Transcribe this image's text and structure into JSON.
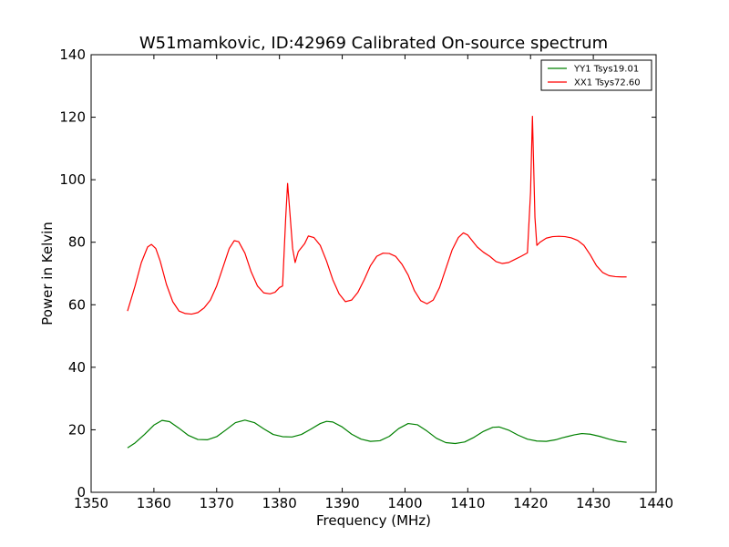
{
  "chart_data": {
    "type": "line",
    "title": "W51mamkovic, ID:42969 Calibrated On-source spectrum",
    "xlabel": "Frequency (MHz)",
    "ylabel": "Power in Kelvin",
    "xlim": [
      1350,
      1440
    ],
    "ylim": [
      0,
      140
    ],
    "xticks": [
      1350,
      1360,
      1370,
      1380,
      1390,
      1400,
      1410,
      1420,
      1430,
      1440
    ],
    "yticks": [
      0,
      20,
      40,
      60,
      80,
      100,
      120,
      140
    ],
    "grid": false,
    "legend_position": "top-right",
    "series": [
      {
        "name": "YY1 Tsys19.01",
        "color": "#008000",
        "x": [
          1355.8,
          1357,
          1358.5,
          1360,
          1361.3,
          1362.5,
          1364,
          1365.5,
          1367,
          1368.5,
          1370,
          1371.5,
          1373,
          1374.5,
          1376,
          1377.5,
          1379,
          1380.5,
          1382,
          1383.5,
          1385,
          1386.5,
          1387.5,
          1388.5,
          1390,
          1391.5,
          1393,
          1394.5,
          1396,
          1397.5,
          1399,
          1400.5,
          1402,
          1403.5,
          1405,
          1406.5,
          1408,
          1409.5,
          1411,
          1412.5,
          1414,
          1415,
          1416.5,
          1418,
          1419.5,
          1421,
          1422.5,
          1424,
          1425,
          1426,
          1427,
          1428.2,
          1429.5,
          1431,
          1432.5,
          1434,
          1435.3
        ],
        "values": [
          14.2,
          15.8,
          18.5,
          21.5,
          23.0,
          22.6,
          20.5,
          18.2,
          16.9,
          16.8,
          17.8,
          20.0,
          22.3,
          23.1,
          22.3,
          20.3,
          18.5,
          17.8,
          17.7,
          18.5,
          20.2,
          22.0,
          22.7,
          22.5,
          20.9,
          18.6,
          17.0,
          16.3,
          16.5,
          17.9,
          20.4,
          22.0,
          21.6,
          19.6,
          17.3,
          15.9,
          15.6,
          16.1,
          17.6,
          19.5,
          20.8,
          20.9,
          19.9,
          18.3,
          17.0,
          16.4,
          16.3,
          16.8,
          17.4,
          17.9,
          18.4,
          18.8,
          18.6,
          17.9,
          17.0,
          16.3,
          16.0
        ]
      },
      {
        "name": "XX1 Tsys72.60",
        "color": "#ff0000",
        "x": [
          1355.8,
          1357,
          1358,
          1359,
          1359.6,
          1360.3,
          1361,
          1362,
          1363,
          1364,
          1365,
          1366,
          1367,
          1368,
          1369,
          1370,
          1371,
          1372,
          1372.8,
          1373.5,
          1374.5,
          1375.5,
          1376.5,
          1377.5,
          1378.5,
          1379.3,
          1380,
          1380.5,
          1381,
          1381.3,
          1381.7,
          1382.1,
          1382.5,
          1383,
          1384,
          1384.6,
          1385.5,
          1386.5,
          1387.5,
          1388.5,
          1389.5,
          1390.5,
          1391.5,
          1392.5,
          1393.5,
          1394.5,
          1395.5,
          1396.5,
          1397.5,
          1398.5,
          1399.5,
          1400.5,
          1401.5,
          1402.5,
          1403.5,
          1404.5,
          1405.5,
          1406.5,
          1407.5,
          1408.5,
          1409.3,
          1410,
          1410.5,
          1411.5,
          1412.5,
          1413.5,
          1414.5,
          1415.5,
          1416.5,
          1417.5,
          1418.5,
          1419.5,
          1420,
          1420.3,
          1420.7,
          1421,
          1421.5,
          1422.5,
          1423.5,
          1424.5,
          1425.5,
          1426.5,
          1427.5,
          1428.5,
          1429.5,
          1430.5,
          1431.5,
          1432.5,
          1433.5,
          1434.5,
          1435.3
        ],
        "values": [
          58.0,
          66.0,
          73.5,
          78.5,
          79.3,
          78.0,
          74.0,
          66.5,
          61.0,
          58.0,
          57.2,
          57.0,
          57.5,
          59.0,
          61.5,
          66.0,
          72.0,
          78.0,
          80.5,
          80.2,
          76.5,
          70.5,
          66.0,
          63.8,
          63.5,
          64.0,
          65.5,
          66.0,
          88.0,
          98.8,
          88.5,
          78.0,
          73.5,
          77.0,
          79.5,
          82.0,
          81.5,
          79.0,
          74.0,
          68.0,
          63.5,
          61.0,
          61.5,
          64.0,
          68.0,
          72.5,
          75.5,
          76.5,
          76.4,
          75.5,
          73.0,
          69.5,
          64.5,
          61.3,
          60.3,
          61.5,
          65.5,
          71.5,
          77.5,
          81.5,
          83.0,
          82.3,
          81.0,
          78.5,
          76.8,
          75.5,
          73.8,
          73.2,
          73.5,
          74.5,
          75.5,
          76.6,
          96.0,
          120.3,
          88.0,
          79.0,
          80.0,
          81.3,
          81.8,
          81.9,
          81.8,
          81.4,
          80.6,
          79.0,
          76.0,
          72.5,
          70.3,
          69.3,
          69.0,
          68.9,
          68.9
        ]
      }
    ]
  }
}
